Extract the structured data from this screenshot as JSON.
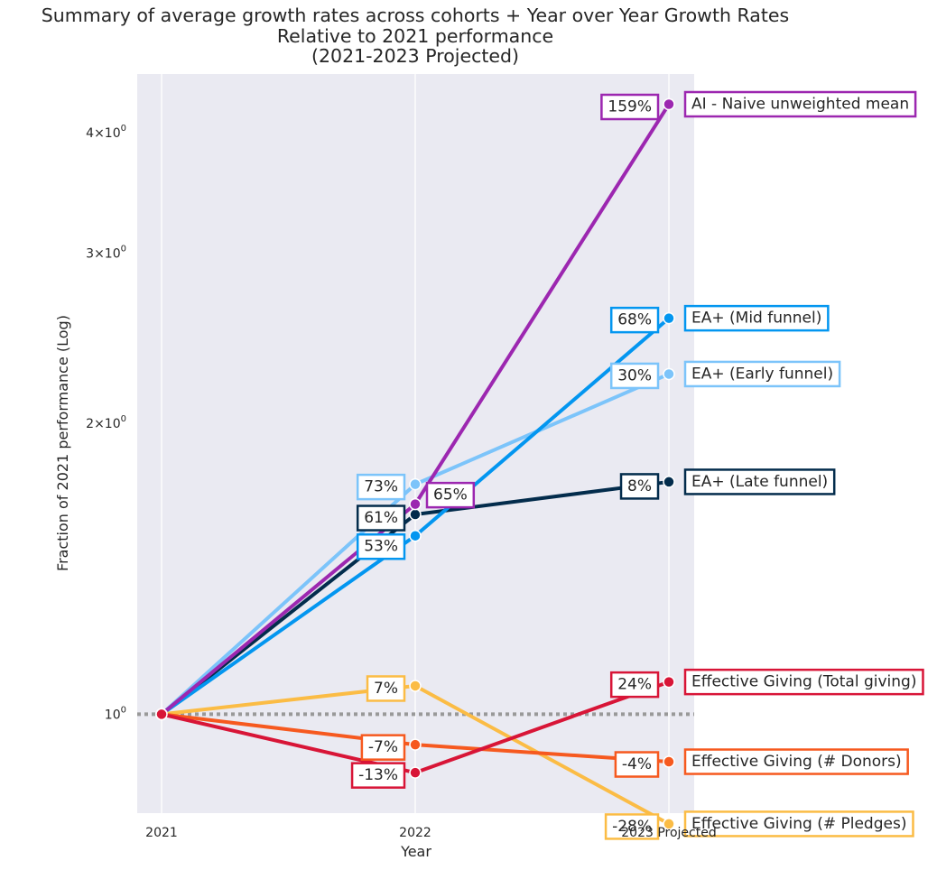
{
  "title_lines": [
    "Summary of average growth rates across cohorts + Year over Year Growth Rates",
    "Relative to 2021 performance",
    "(2021-2023 Projected)"
  ],
  "chart_data": {
    "type": "line",
    "title": "Summary of average growth rates across cohorts + Year over Year Growth Rates Relative to 2021 performance (2021-2023 Projected)",
    "xlabel": "Year",
    "ylabel": "Fraction of 2021 performance (Log)",
    "y_scale": "log",
    "ylim": [
      0.79,
      4.6
    ],
    "categories": [
      "2021",
      "2022",
      "2023 Projected"
    ],
    "y_ticks": [
      {
        "value": 1,
        "label": "10^0"
      },
      {
        "value": 2,
        "label": "2×10^0"
      },
      {
        "value": 3,
        "label": "3×10^0"
      },
      {
        "value": 4,
        "label": "4×10^0"
      }
    ],
    "reference_line": {
      "value": 1,
      "style": "dotted",
      "color": "#999999"
    },
    "grid": true,
    "background": "#eaeaf2",
    "series": [
      {
        "name": "AI - Naive unweighted mean",
        "color": "#9c27b0",
        "values": [
          1.0,
          1.65,
          4.28
        ],
        "growth_labels": [
          "65%",
          "159%"
        ]
      },
      {
        "name": "EA+ (Mid funnel)",
        "color": "#0396f0",
        "values": [
          1.0,
          1.53,
          2.57
        ],
        "growth_labels": [
          "53%",
          "68%"
        ]
      },
      {
        "name": "EA+ (Early funnel)",
        "color": "#7cc4fa",
        "values": [
          1.0,
          1.73,
          2.25
        ],
        "growth_labels": [
          "73%",
          "30%"
        ]
      },
      {
        "name": "EA+ (Late funnel)",
        "color": "#032c4c",
        "values": [
          1.0,
          1.61,
          1.74
        ],
        "growth_labels": [
          "61%",
          "8%"
        ]
      },
      {
        "name": "Effective Giving (Total giving)",
        "color": "#d81537",
        "values": [
          1.0,
          0.87,
          1.08
        ],
        "growth_labels": [
          "-13%",
          "24%"
        ]
      },
      {
        "name": "Effective Giving (# Donors)",
        "color": "#f6591f",
        "values": [
          1.0,
          0.93,
          0.893
        ],
        "growth_labels": [
          "-7%",
          "-4%"
        ]
      },
      {
        "name": "Effective Giving (# Pledges)",
        "color": "#fbbc45",
        "values": [
          1.0,
          1.07,
          0.77
        ],
        "growth_labels": [
          "7%",
          "-28%"
        ]
      }
    ]
  }
}
